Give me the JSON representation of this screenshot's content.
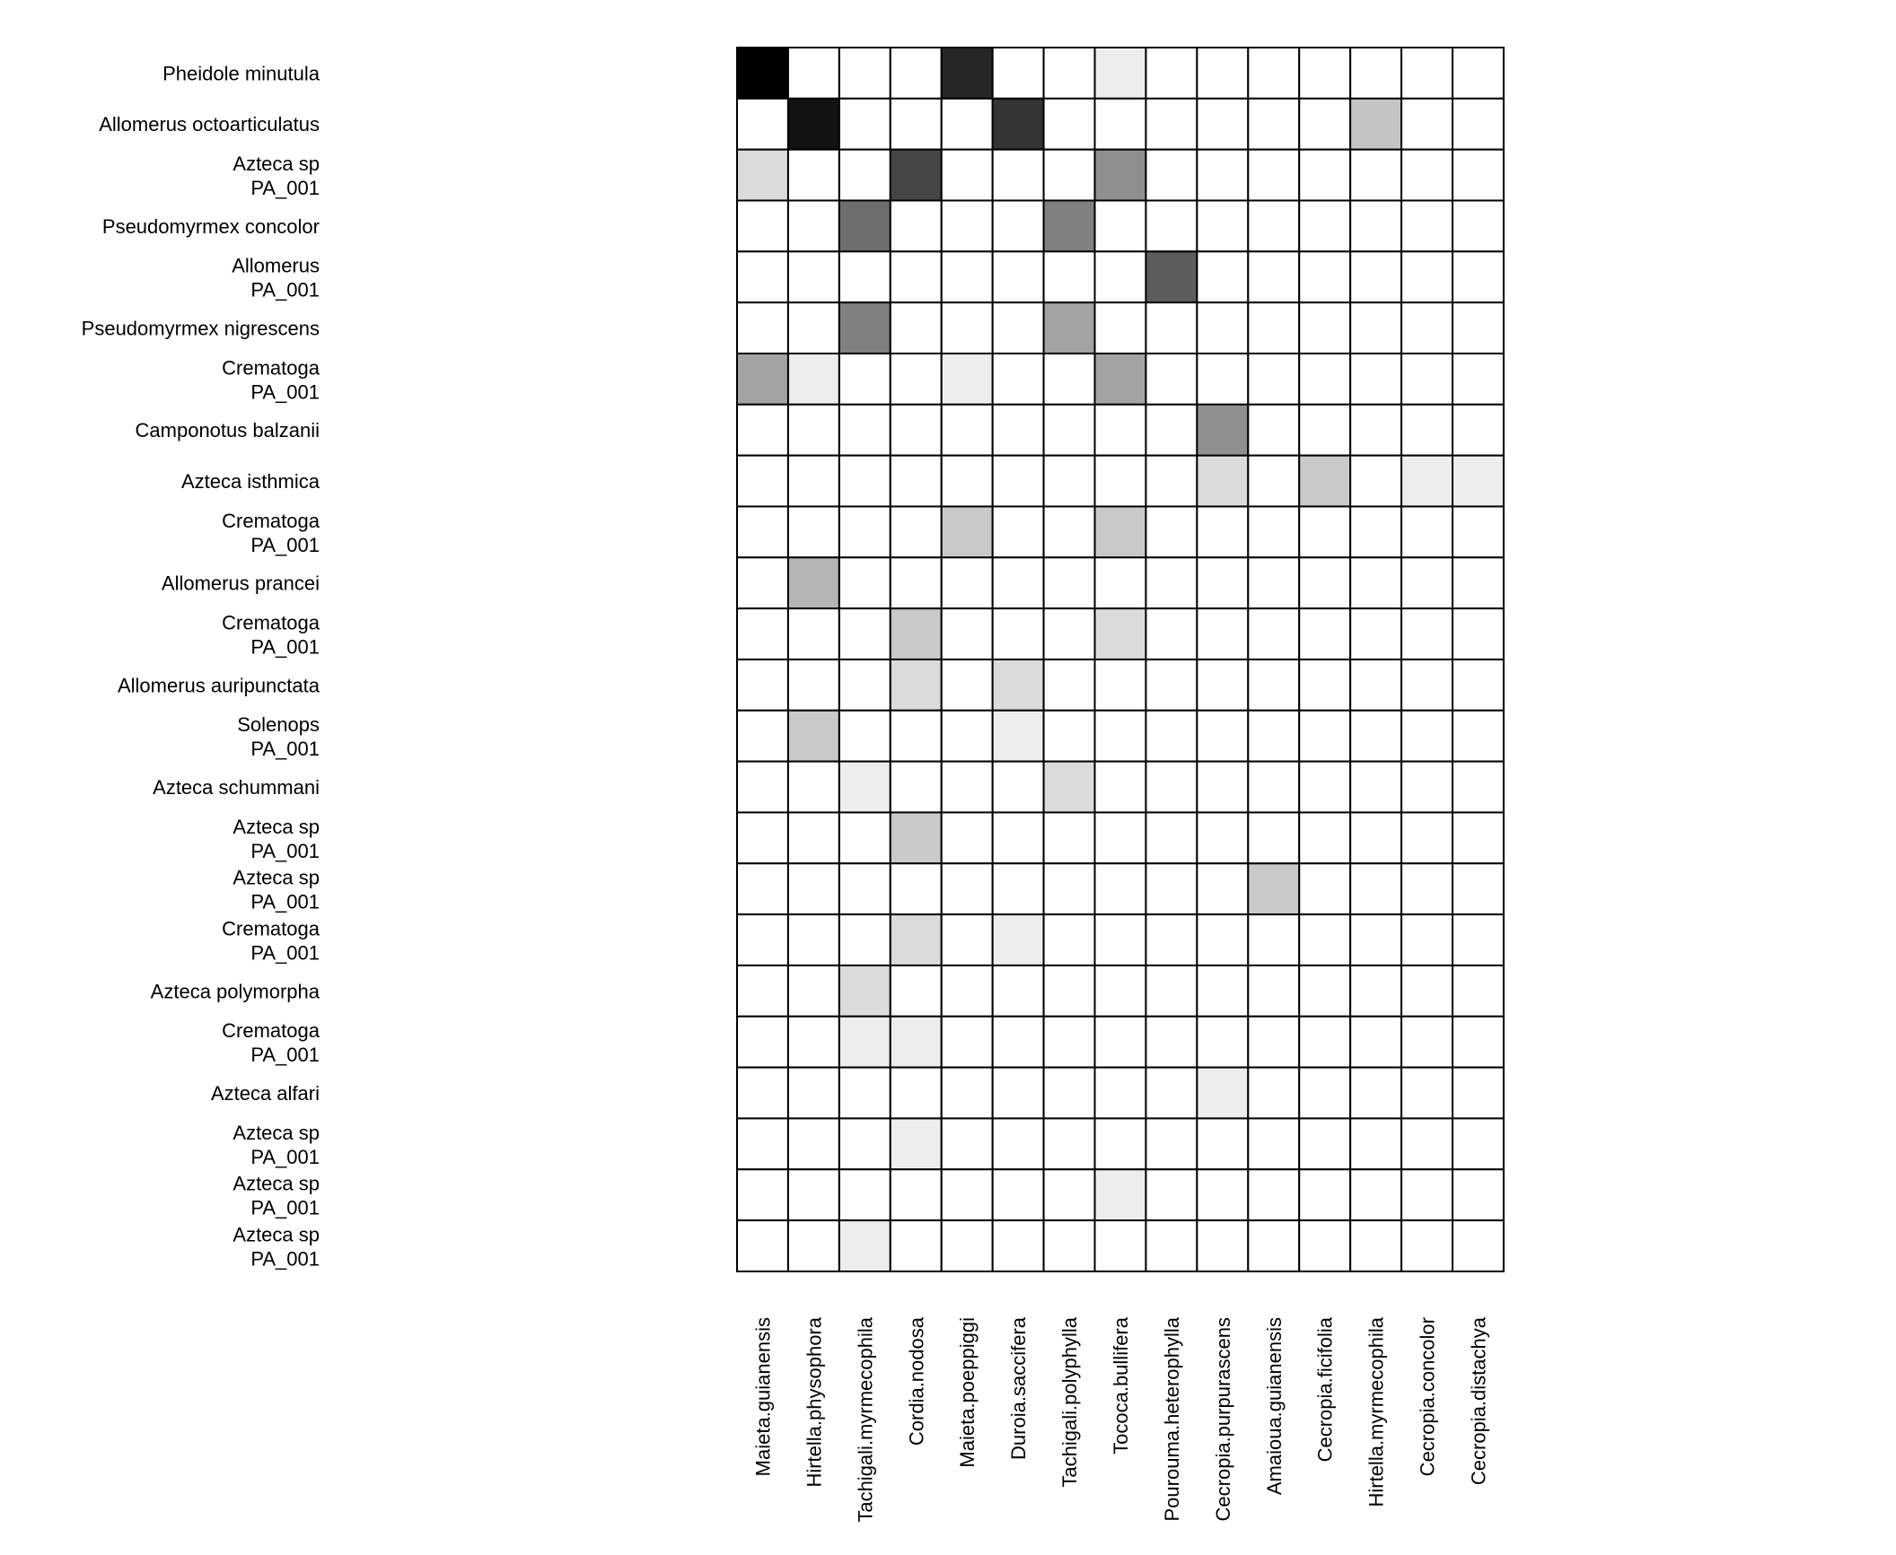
{
  "chart_data": {
    "type": "heatmap",
    "title": "",
    "xlabel": "",
    "ylabel": "",
    "colorscale": {
      "low": "#ffffff",
      "high": "#000000"
    },
    "x": [
      "Maieta.guianensis",
      "Hirtella.physophora",
      "Tachigali.myrmecophila",
      "Cordia.nodosa",
      "Maieta.poeppiggi",
      "Duroia.saccifera",
      "Tachigali.polyphylla",
      "Tococa.bullifera",
      "Pourouma.heterophylla",
      "Cecropia.purpurascens",
      "Amaioua.guianensis",
      "Cecropia.ficifolia",
      "Hirtella.myrmecophila",
      "Cecropia.concolor",
      "Cecropia.distachya"
    ],
    "y": [
      [
        "Pheidole minutula"
      ],
      [
        "Allomerus octoarticulatus"
      ],
      [
        "Azteca sp",
        "PA_001"
      ],
      [
        "Pseudomyrmex concolor"
      ],
      [
        "Allomerus",
        "PA_001"
      ],
      [
        "Pseudomyrmex nigrescens"
      ],
      [
        "Crematoga",
        "PA_001"
      ],
      [
        "Camponotus balzanii"
      ],
      [
        "Azteca isthmica"
      ],
      [
        "Crematoga",
        "PA_001"
      ],
      [
        "Allomerus prancei"
      ],
      [
        "Crematoga",
        "PA_001"
      ],
      [
        "Allomerus auripunctata"
      ],
      [
        "Solenops",
        "PA_001"
      ],
      [
        "Azteca schummani"
      ],
      [
        "Azteca sp",
        "PA_001"
      ],
      [
        "Azteca sp",
        "PA_001"
      ],
      [
        "Crematoga",
        "PA_001"
      ],
      [
        "Azteca polymorpha"
      ],
      [
        "Crematoga",
        "PA_001"
      ],
      [
        "Azteca alfari"
      ],
      [
        "Azteca sp",
        "PA_001"
      ],
      [
        "Azteca sp",
        "PA_001"
      ],
      [
        "Azteca sp",
        "PA_001"
      ]
    ],
    "values": [
      [
        1.0,
        0,
        0,
        0,
        0.85,
        0,
        0,
        0.07,
        0,
        0,
        0,
        0,
        0,
        0,
        0
      ],
      [
        0,
        0.93,
        0,
        0,
        0,
        0.8,
        0,
        0,
        0,
        0,
        0,
        0,
        0.23,
        0,
        0
      ],
      [
        0.14,
        0,
        0,
        0.73,
        0,
        0,
        0,
        0.44,
        0,
        0,
        0,
        0,
        0,
        0,
        0
      ],
      [
        0,
        0,
        0.57,
        0,
        0,
        0,
        0.5,
        0,
        0,
        0,
        0,
        0,
        0,
        0,
        0
      ],
      [
        0,
        0,
        0,
        0,
        0,
        0,
        0,
        0,
        0.64,
        0,
        0,
        0,
        0,
        0,
        0
      ],
      [
        0,
        0,
        0.5,
        0,
        0,
        0,
        0.36,
        0,
        0,
        0,
        0,
        0,
        0,
        0,
        0
      ],
      [
        0.36,
        0.07,
        0,
        0,
        0.07,
        0,
        0,
        0.36,
        0,
        0,
        0,
        0,
        0,
        0,
        0
      ],
      [
        0,
        0,
        0,
        0,
        0,
        0,
        0,
        0,
        0,
        0.44,
        0,
        0,
        0,
        0,
        0
      ],
      [
        0,
        0,
        0,
        0,
        0,
        0,
        0,
        0,
        0,
        0.14,
        0,
        0.21,
        0,
        0.07,
        0.07
      ],
      [
        0,
        0,
        0,
        0,
        0.21,
        0,
        0,
        0.21,
        0,
        0,
        0,
        0,
        0,
        0,
        0
      ],
      [
        0,
        0.29,
        0,
        0,
        0,
        0,
        0,
        0,
        0,
        0,
        0,
        0,
        0,
        0,
        0
      ],
      [
        0,
        0,
        0,
        0.21,
        0,
        0,
        0,
        0.14,
        0,
        0,
        0,
        0,
        0,
        0,
        0
      ],
      [
        0,
        0,
        0,
        0.14,
        0,
        0.14,
        0,
        0,
        0,
        0,
        0,
        0,
        0,
        0,
        0
      ],
      [
        0,
        0.21,
        0,
        0,
        0,
        0.07,
        0,
        0,
        0,
        0,
        0,
        0,
        0,
        0,
        0
      ],
      [
        0,
        0,
        0.07,
        0,
        0,
        0,
        0.14,
        0,
        0,
        0,
        0,
        0,
        0,
        0,
        0
      ],
      [
        0,
        0,
        0,
        0.21,
        0,
        0,
        0,
        0,
        0,
        0,
        0,
        0,
        0,
        0,
        0
      ],
      [
        0,
        0,
        0,
        0,
        0,
        0,
        0,
        0,
        0,
        0,
        0.21,
        0,
        0,
        0,
        0
      ],
      [
        0,
        0,
        0,
        0.14,
        0,
        0.07,
        0,
        0,
        0,
        0,
        0,
        0,
        0,
        0,
        0
      ],
      [
        0,
        0,
        0.14,
        0,
        0,
        0,
        0,
        0,
        0,
        0,
        0,
        0,
        0,
        0,
        0
      ],
      [
        0,
        0,
        0.07,
        0.07,
        0,
        0,
        0,
        0,
        0,
        0,
        0,
        0,
        0,
        0,
        0
      ],
      [
        0,
        0,
        0,
        0,
        0,
        0,
        0,
        0,
        0,
        0.07,
        0,
        0,
        0,
        0,
        0
      ],
      [
        0,
        0,
        0,
        0.07,
        0,
        0,
        0,
        0,
        0,
        0,
        0,
        0,
        0,
        0,
        0
      ],
      [
        0,
        0,
        0,
        0,
        0,
        0,
        0,
        0.07,
        0,
        0,
        0,
        0,
        0,
        0,
        0
      ],
      [
        0,
        0,
        0.07,
        0,
        0,
        0,
        0,
        0,
        0,
        0,
        0,
        0,
        0,
        0,
        0
      ]
    ],
    "grid": true,
    "legend": "none"
  }
}
